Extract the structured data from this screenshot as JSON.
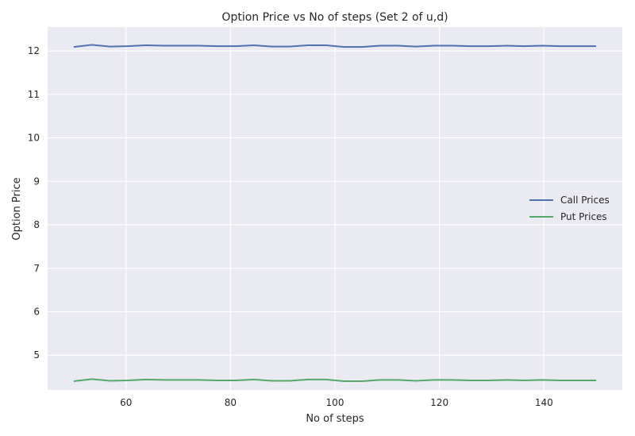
{
  "chart_data": {
    "type": "line",
    "title": "Option Price vs No of steps (Set 2 of u,d)",
    "xlabel": "No of steps",
    "ylabel": "Option Price",
    "xlim": [
      45,
      155
    ],
    "ylim": [
      4.2,
      12.55
    ],
    "xticks": [
      60,
      80,
      100,
      120,
      140
    ],
    "yticks": [
      5,
      6,
      7,
      8,
      9,
      10,
      11,
      12
    ],
    "grid": true,
    "legend_position": "center-right",
    "x": [
      50,
      53.45,
      56.9,
      60.34,
      63.79,
      67.24,
      70.69,
      74.14,
      77.59,
      81.03,
      84.48,
      87.93,
      91.38,
      94.83,
      98.28,
      101.72,
      105.17,
      108.62,
      112.07,
      115.52,
      118.97,
      122.41,
      125.86,
      129.31,
      132.76,
      136.21,
      139.66,
      143.1,
      146.55,
      150
    ],
    "series": [
      {
        "name": "Call Prices",
        "color": "#4c72b0",
        "values": [
          12.09,
          12.14,
          12.1,
          12.11,
          12.13,
          12.12,
          12.12,
          12.12,
          12.11,
          12.11,
          12.13,
          12.1,
          12.1,
          12.13,
          12.13,
          12.09,
          12.09,
          12.12,
          12.12,
          12.1,
          12.12,
          12.12,
          12.11,
          12.11,
          12.12,
          12.11,
          12.12,
          12.11,
          12.11,
          12.11
        ]
      },
      {
        "name": "Put Prices",
        "color": "#55a868",
        "values": [
          4.4,
          4.45,
          4.41,
          4.42,
          4.44,
          4.43,
          4.43,
          4.43,
          4.42,
          4.42,
          4.44,
          4.41,
          4.41,
          4.44,
          4.44,
          4.4,
          4.4,
          4.43,
          4.43,
          4.41,
          4.43,
          4.43,
          4.42,
          4.42,
          4.43,
          4.42,
          4.43,
          4.42,
          4.42,
          4.42
        ]
      }
    ]
  }
}
